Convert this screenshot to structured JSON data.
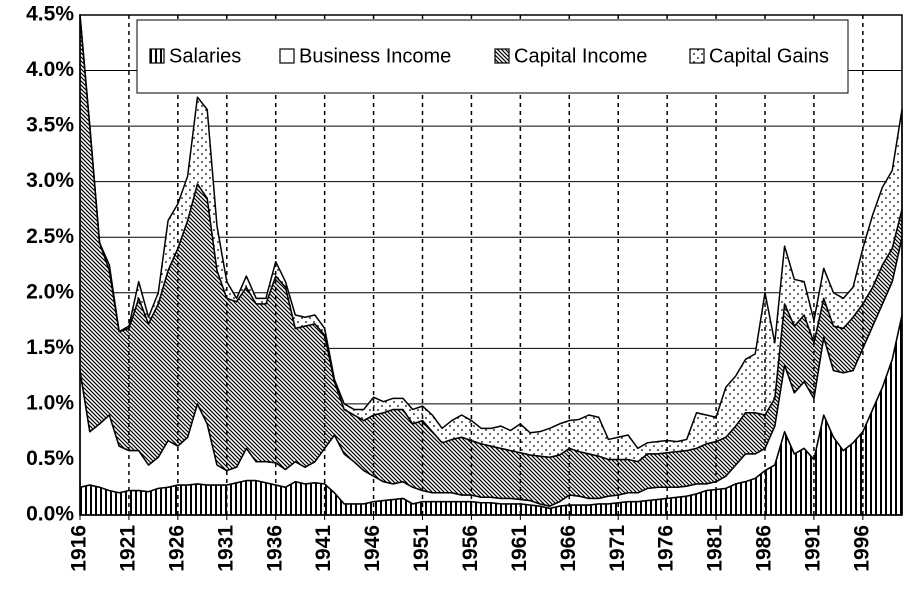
{
  "chart_data": {
    "type": "stacked-area",
    "x": [
      1916,
      1917,
      1918,
      1919,
      1920,
      1921,
      1922,
      1923,
      1924,
      1925,
      1926,
      1927,
      1928,
      1929,
      1930,
      1931,
      1932,
      1933,
      1934,
      1935,
      1936,
      1937,
      1938,
      1939,
      1940,
      1941,
      1942,
      1943,
      1944,
      1945,
      1946,
      1947,
      1948,
      1949,
      1950,
      1951,
      1952,
      1953,
      1954,
      1955,
      1956,
      1957,
      1958,
      1959,
      1960,
      1961,
      1962,
      1963,
      1964,
      1965,
      1966,
      1967,
      1968,
      1969,
      1970,
      1971,
      1972,
      1973,
      1974,
      1975,
      1976,
      1977,
      1978,
      1979,
      1980,
      1981,
      1982,
      1983,
      1984,
      1985,
      1986,
      1987,
      1988,
      1989,
      1990,
      1991,
      1992,
      1993,
      1994,
      1995,
      1996,
      1997,
      1998,
      1999,
      2000
    ],
    "xlim": [
      1916,
      2000
    ],
    "xticks": [
      1916,
      1921,
      1926,
      1931,
      1936,
      1941,
      1946,
      1951,
      1956,
      1961,
      1966,
      1971,
      1976,
      1981,
      1986,
      1991,
      1996
    ],
    "ylim": [
      0,
      4.5
    ],
    "yticks": [
      {
        "value": 0,
        "label": "0.0%"
      },
      {
        "value": 0.5,
        "label": "0.5%"
      },
      {
        "value": 1,
        "label": "1.0%"
      },
      {
        "value": 1.5,
        "label": "1.5%"
      },
      {
        "value": 2,
        "label": "2.0%"
      },
      {
        "value": 2.5,
        "label": "2.5%"
      },
      {
        "value": 3,
        "label": "3.0%"
      },
      {
        "value": 3.5,
        "label": "3.5%"
      },
      {
        "value": 4,
        "label": "4.0%"
      },
      {
        "value": 4.5,
        "label": "4.5%"
      }
    ],
    "grid": true,
    "series": [
      {
        "name": "Salaries",
        "color": "#000000",
        "pattern": "vertical",
        "values": [
          0.25,
          0.27,
          0.25,
          0.22,
          0.2,
          0.22,
          0.22,
          0.21,
          0.24,
          0.25,
          0.27,
          0.27,
          0.28,
          0.27,
          0.27,
          0.27,
          0.29,
          0.31,
          0.31,
          0.29,
          0.27,
          0.25,
          0.3,
          0.28,
          0.29,
          0.28,
          0.2,
          0.1,
          0.1,
          0.1,
          0.12,
          0.13,
          0.14,
          0.15,
          0.1,
          0.12,
          0.12,
          0.12,
          0.12,
          0.12,
          0.12,
          0.11,
          0.11,
          0.1,
          0.1,
          0.1,
          0.09,
          0.08,
          0.06,
          0.08,
          0.09,
          0.09,
          0.09,
          0.1,
          0.1,
          0.11,
          0.12,
          0.12,
          0.13,
          0.14,
          0.15,
          0.16,
          0.17,
          0.19,
          0.22,
          0.23,
          0.24,
          0.28,
          0.3,
          0.33,
          0.4,
          0.45,
          0.75,
          0.55,
          0.6,
          0.5,
          0.9,
          0.7,
          0.58,
          0.65,
          0.75,
          0.95,
          1.15,
          1.4,
          1.8
        ]
      },
      {
        "name": "Business Income",
        "color": "#000000",
        "pattern": "blank",
        "values": [
          1.05,
          0.48,
          0.57,
          0.68,
          0.42,
          0.36,
          0.36,
          0.24,
          0.28,
          0.42,
          0.35,
          0.43,
          0.72,
          0.55,
          0.18,
          0.13,
          0.14,
          0.29,
          0.17,
          0.19,
          0.2,
          0.16,
          0.18,
          0.15,
          0.19,
          0.32,
          0.52,
          0.45,
          0.38,
          0.3,
          0.23,
          0.17,
          0.14,
          0.15,
          0.15,
          0.1,
          0.08,
          0.08,
          0.08,
          0.06,
          0.06,
          0.05,
          0.05,
          0.05,
          0.05,
          0.04,
          0.04,
          0.02,
          0.02,
          0.04,
          0.09,
          0.08,
          0.06,
          0.05,
          0.07,
          0.07,
          0.08,
          0.08,
          0.11,
          0.11,
          0.1,
          0.09,
          0.09,
          0.09,
          0.06,
          0.07,
          0.11,
          0.17,
          0.25,
          0.22,
          0.2,
          0.35,
          0.6,
          0.55,
          0.6,
          0.55,
          0.7,
          0.6,
          0.7,
          0.65,
          0.75,
          0.75,
          0.75,
          0.7,
          0.7
        ]
      },
      {
        "name": "Capital Income",
        "color": "#000000",
        "pattern": "diagonal",
        "values": [
          3.2,
          2.75,
          1.63,
          1.3,
          1.03,
          1.1,
          1.37,
          1.27,
          1.38,
          1.53,
          1.78,
          1.95,
          1.98,
          2.03,
          1.75,
          1.55,
          1.49,
          1.45,
          1.42,
          1.42,
          1.68,
          1.64,
          1.2,
          1.27,
          1.24,
          1.02,
          0.48,
          0.4,
          0.42,
          0.45,
          0.55,
          0.62,
          0.67,
          0.65,
          0.57,
          0.63,
          0.55,
          0.45,
          0.48,
          0.52,
          0.49,
          0.48,
          0.46,
          0.45,
          0.43,
          0.42,
          0.41,
          0.43,
          0.44,
          0.42,
          0.42,
          0.4,
          0.4,
          0.38,
          0.33,
          0.32,
          0.3,
          0.28,
          0.31,
          0.3,
          0.31,
          0.32,
          0.32,
          0.32,
          0.36,
          0.36,
          0.35,
          0.35,
          0.37,
          0.37,
          0.3,
          0.25,
          0.55,
          0.6,
          0.6,
          0.5,
          0.35,
          0.4,
          0.4,
          0.48,
          0.4,
          0.35,
          0.35,
          0.3,
          0.25
        ]
      },
      {
        "name": "Capital Gains",
        "color": "#000000",
        "pattern": "dots",
        "values": [
          0,
          0,
          0,
          0.05,
          0,
          0.02,
          0.15,
          0.06,
          0.1,
          0.45,
          0.4,
          0.4,
          0.78,
          0.8,
          0.4,
          0.15,
          0.03,
          0.1,
          0.05,
          0.05,
          0.13,
          0.05,
          0.12,
          0.08,
          0.08,
          0.06,
          0.02,
          0.05,
          0.05,
          0.1,
          0.16,
          0.1,
          0.1,
          0.1,
          0.13,
          0.13,
          0.15,
          0.13,
          0.17,
          0.2,
          0.18,
          0.14,
          0.16,
          0.2,
          0.18,
          0.26,
          0.2,
          0.22,
          0.26,
          0.28,
          0.25,
          0.29,
          0.35,
          0.35,
          0.18,
          0.2,
          0.22,
          0.12,
          0.1,
          0.11,
          0.11,
          0.09,
          0.1,
          0.32,
          0.26,
          0.22,
          0.45,
          0.45,
          0.48,
          0.53,
          1.1,
          0.5,
          0.52,
          0.42,
          0.3,
          0.2,
          0.27,
          0.3,
          0.27,
          0.27,
          0.5,
          0.65,
          0.7,
          0.7,
          0.9
        ]
      }
    ]
  }
}
